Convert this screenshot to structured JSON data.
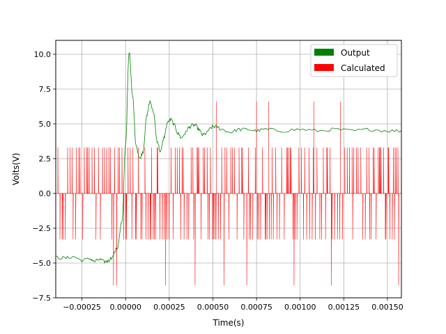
{
  "chart_data": {
    "type": "line",
    "xlabel": "Time(s)",
    "ylabel": "Volts(V)",
    "xlim": [
      -0.0004,
      0.00158
    ],
    "ylim": [
      -7.5,
      11.0
    ],
    "xticks": [
      -0.00025,
      0.0,
      0.00025,
      0.0005,
      0.00075,
      0.001,
      0.00125,
      0.0015
    ],
    "xtick_labels": [
      "−0.00025",
      "0.00000",
      "0.00025",
      "0.00050",
      "0.00075",
      "0.00100",
      "0.00125",
      "0.00150"
    ],
    "yticks": [
      -7.5,
      -5.0,
      -2.5,
      0.0,
      2.5,
      5.0,
      7.5,
      10.0
    ],
    "ytick_labels": [
      "−7.5",
      "−5.0",
      "−2.5",
      "0.0",
      "2.5",
      "5.0",
      "7.5",
      "10.0"
    ],
    "grid": true,
    "legend_position": "upper-right",
    "series": [
      {
        "name": "Output",
        "color": "#008000",
        "x": [
          -0.0004,
          -0.00035,
          -0.0003,
          -0.00025,
          -0.0002,
          -0.00018,
          -0.00015,
          -0.00012,
          -0.0001,
          -8e-05,
          -5e-05,
          -2e-05,
          0.0,
          2e-05,
          4e-05,
          6e-05,
          8e-05,
          0.0001,
          0.00012,
          0.00014,
          0.00016,
          0.00018,
          0.0002,
          0.00022,
          0.00024,
          0.00026,
          0.00028,
          0.0003,
          0.00032,
          0.00034,
          0.00036,
          0.00038,
          0.0004,
          0.00042,
          0.00044,
          0.00046,
          0.00048,
          0.0005,
          0.00052,
          0.00055,
          0.0006,
          0.00065,
          0.0007,
          0.00075,
          0.0008,
          0.0009,
          0.001,
          0.0011,
          0.0012,
          0.0013,
          0.0014,
          0.0015,
          0.00158
        ],
        "y": [
          -4.6,
          -4.65,
          -4.55,
          -4.8,
          -4.7,
          -4.9,
          -4.75,
          -4.9,
          -4.85,
          -4.6,
          -4.0,
          -2.0,
          3.5,
          10.2,
          7.0,
          3.5,
          2.5,
          3.0,
          5.5,
          6.6,
          5.8,
          3.8,
          3.0,
          4.0,
          5.1,
          5.3,
          4.9,
          4.3,
          4.0,
          4.3,
          4.7,
          4.9,
          4.9,
          4.6,
          4.2,
          4.3,
          4.6,
          4.8,
          4.8,
          4.6,
          4.4,
          4.6,
          4.6,
          4.5,
          4.6,
          4.5,
          4.6,
          4.5,
          4.6,
          4.5,
          4.6,
          4.5,
          4.5
        ]
      },
      {
        "name": "Calculated",
        "color": "#ff0000",
        "levels": [
          -6.6,
          -3.3,
          0.0,
          3.3
        ],
        "x": [
          -0.0004,
          0.00158
        ],
        "y": [
          0.0,
          0.0
        ]
      }
    ]
  }
}
